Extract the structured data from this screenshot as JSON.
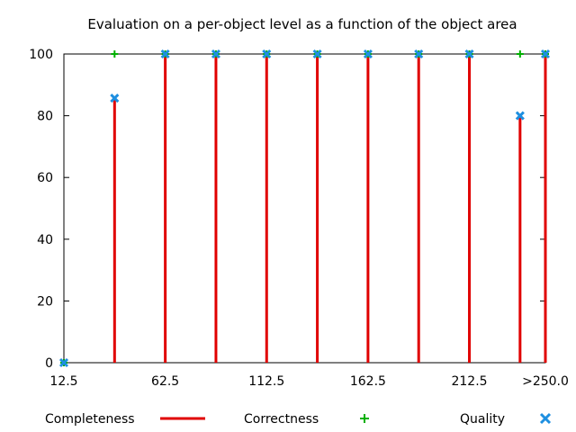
{
  "chart_data": {
    "type": "bar",
    "title": "Evaluation on a per-object level as a function of the object area",
    "xlabel": "",
    "ylabel": "",
    "x": [
      12.5,
      37.5,
      62.5,
      87.5,
      112.5,
      137.5,
      162.5,
      187.5,
      212.5,
      237.5,
      250
    ],
    "xtick_labels": [
      "12.5",
      "62.5",
      "112.5",
      "162.5",
      "212.5",
      ">250.0"
    ],
    "xtick_values": [
      12.5,
      62.5,
      112.5,
      162.5,
      212.5,
      250
    ],
    "ylim": [
      0,
      100
    ],
    "ytick_labels": [
      "0",
      "20",
      "40",
      "60",
      "80",
      "100"
    ],
    "ytick_values": [
      0,
      20,
      40,
      60,
      80,
      100
    ],
    "grid": false,
    "legend_position": "bottom",
    "series": [
      {
        "name": "Completeness",
        "style": "impulses",
        "color": "#e00000",
        "values": [
          0,
          85.7,
          100,
          100,
          100,
          100,
          100,
          100,
          100,
          80,
          100
        ]
      },
      {
        "name": "Correctness",
        "style": "points-plus",
        "color": "#00b000",
        "values": [
          0,
          100,
          100,
          100,
          100,
          100,
          100,
          100,
          100,
          100,
          100
        ]
      },
      {
        "name": "Quality",
        "style": "points-x",
        "color": "#1e8fe0",
        "values": [
          0,
          85.7,
          100,
          100,
          100,
          100,
          100,
          100,
          100,
          80,
          100
        ]
      }
    ]
  }
}
